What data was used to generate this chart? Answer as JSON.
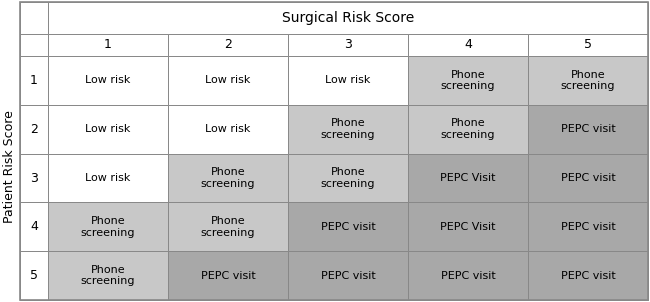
{
  "title_surgical": "Surgical Risk Score",
  "title_patient": "Patient Risk Score",
  "col_headers": [
    "1",
    "2",
    "3",
    "4",
    "5"
  ],
  "row_headers": [
    "1",
    "2",
    "3",
    "4",
    "5"
  ],
  "cell_data": [
    [
      "Low risk",
      "Low risk",
      "Low risk",
      "Phone\nscreening",
      "Phone\nscreening"
    ],
    [
      "Low risk",
      "Low risk",
      "Phone\nscreening",
      "Phone\nscreening",
      "PEPC visit"
    ],
    [
      "Low risk",
      "Phone\nscreening",
      "Phone\nscreening",
      "PEPC Visit",
      "PEPC visit"
    ],
    [
      "Phone\nscreening",
      "Phone\nscreening",
      "PEPC visit",
      "PEPC Visit",
      "PEPC visit"
    ],
    [
      "Phone\nscreening",
      "PEPC visit",
      "PEPC visit",
      "PEPC visit",
      "PEPC visit"
    ]
  ],
  "cell_colors": [
    [
      "#ffffff",
      "#ffffff",
      "#ffffff",
      "#c8c8c8",
      "#c8c8c8"
    ],
    [
      "#ffffff",
      "#ffffff",
      "#c8c8c8",
      "#c8c8c8",
      "#a8a8a8"
    ],
    [
      "#ffffff",
      "#c8c8c8",
      "#c8c8c8",
      "#a8a8a8",
      "#a8a8a8"
    ],
    [
      "#c8c8c8",
      "#c8c8c8",
      "#a8a8a8",
      "#a8a8a8",
      "#a8a8a8"
    ],
    [
      "#c8c8c8",
      "#a8a8a8",
      "#a8a8a8",
      "#a8a8a8",
      "#a8a8a8"
    ]
  ],
  "border_color": "#888888",
  "text_color": "#000000",
  "cell_fontsize": 8,
  "header_fontsize": 9,
  "title_fontsize": 10,
  "patient_label_fontsize": 9
}
